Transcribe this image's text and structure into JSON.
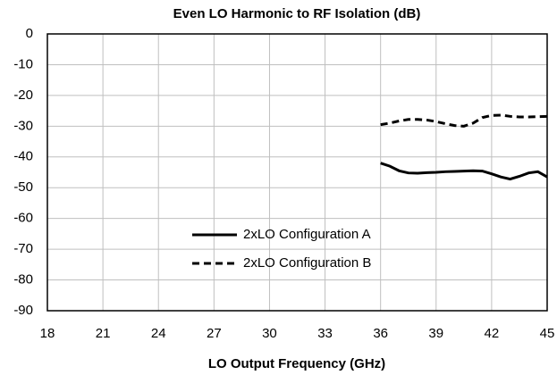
{
  "chart_data": {
    "type": "line",
    "title": "Even LO Harmonic to RF Isolation (dB)",
    "x_label": "LO Output Frequency (GHz)",
    "x": [
      36,
      36.5,
      37,
      37.5,
      38,
      38.5,
      39,
      39.5,
      40,
      40.5,
      41,
      41.5,
      42,
      42.5,
      43,
      43.5,
      44,
      44.5,
      45
    ],
    "series": [
      {
        "name": "2xLO Configuration A",
        "color": "#000000",
        "dash": "solid",
        "values": [
          -42,
          -43,
          -44.5,
          -45.2,
          -45.3,
          -45.1,
          -45,
          -44.8,
          -44.7,
          -44.6,
          -44.5,
          -44.6,
          -45.5,
          -46.5,
          -47.2,
          -46.3,
          -45.2,
          -44.8,
          -46.5
        ]
      },
      {
        "name": "2xLO Configuration B",
        "color": "#000000",
        "dash": "dashed",
        "values": [
          -29.5,
          -29,
          -28.3,
          -27.8,
          -27.8,
          -28,
          -28.5,
          -29.2,
          -29.8,
          -30,
          -29,
          -27.2,
          -26.5,
          -26.4,
          -26.8,
          -27,
          -27,
          -26.9,
          -26.8
        ]
      }
    ],
    "xlim": [
      18,
      45
    ],
    "xticks": [
      18,
      21,
      24,
      27,
      30,
      33,
      36,
      39,
      42,
      45
    ],
    "ylim": [
      -90,
      0
    ],
    "yticks": [
      0,
      -10,
      -20,
      -30,
      -40,
      -50,
      -60,
      -70,
      -80,
      -90
    ],
    "grid": true
  }
}
